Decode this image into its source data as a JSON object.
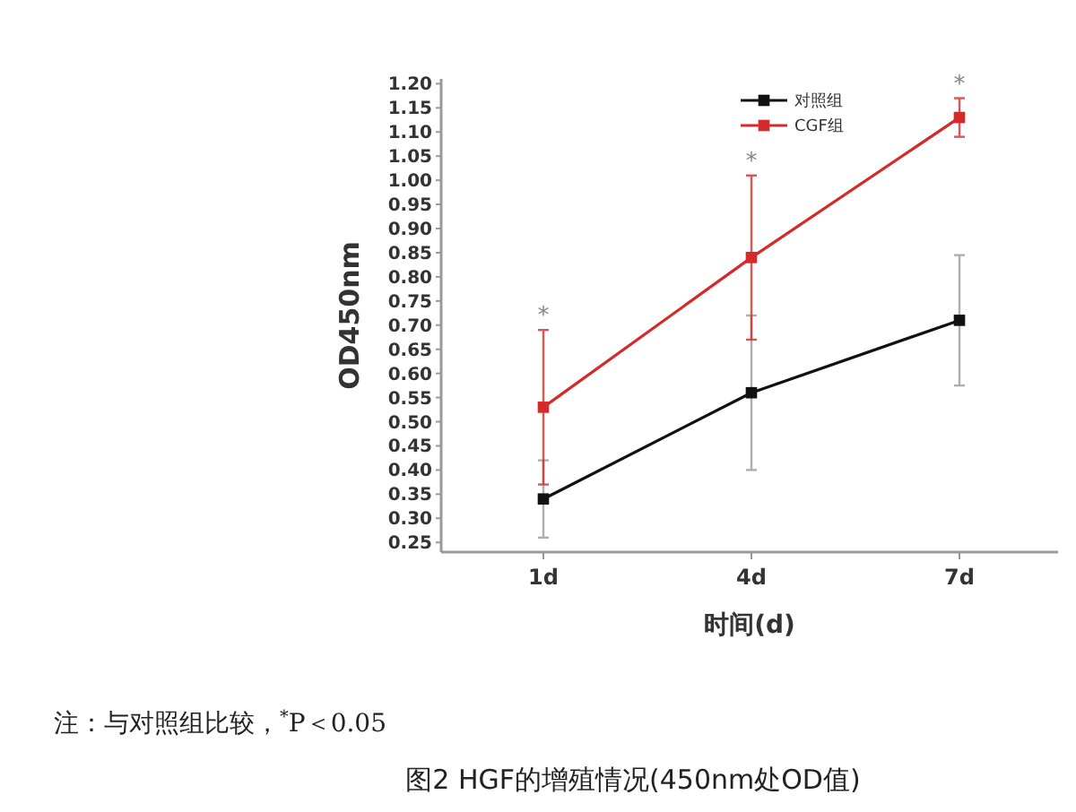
{
  "chart_data": {
    "type": "line",
    "xlabel": "时间(d)",
    "ylabel": "OD450nm",
    "title": "图2 HGF的增殖情况(450nm处OD值)",
    "categories": [
      "1d",
      "4d",
      "7d"
    ],
    "series": [
      {
        "name": "对照组",
        "color": "#111111",
        "values": [
          0.34,
          0.56,
          0.71
        ],
        "errors": [
          0.08,
          0.16,
          0.135
        ]
      },
      {
        "name": "CGF组",
        "color": "#d42a2a",
        "values": [
          0.53,
          0.84,
          1.13
        ],
        "errors": [
          0.16,
          0.17,
          0.04
        ]
      }
    ],
    "ylim": [
      0.23,
      1.21
    ],
    "yticks": [
      {
        "value": 0.25,
        "label": "0.25"
      },
      {
        "value": 0.3,
        "label": "0.30"
      },
      {
        "value": 0.35,
        "label": "0.35"
      },
      {
        "value": 0.4,
        "label": "0.40"
      },
      {
        "value": 0.45,
        "label": "0.45"
      },
      {
        "value": 0.5,
        "label": "0.50"
      },
      {
        "value": 0.55,
        "label": "0.55"
      },
      {
        "value": 0.6,
        "label": "0.60"
      },
      {
        "value": 0.65,
        "label": "0.65"
      },
      {
        "value": 0.7,
        "label": "0.70"
      },
      {
        "value": 0.75,
        "label": "0.75"
      },
      {
        "value": 0.8,
        "label": "0.80"
      },
      {
        "value": 0.85,
        "label": "0.85"
      },
      {
        "value": 0.9,
        "label": "0.90"
      },
      {
        "value": 0.95,
        "label": "0.95"
      },
      {
        "value": 1.0,
        "label": "1.00"
      },
      {
        "value": 1.05,
        "label": "1.05"
      },
      {
        "value": 1.1,
        "label": "1.10"
      },
      {
        "value": 1.15,
        "label": "1.15"
      },
      {
        "value": 1.2,
        "label": "1.20"
      }
    ],
    "annotations": [
      "*",
      "*",
      "*",
      "注：与对照组比较，$^{*}$P＜0.05"
    ],
    "legend": "top right",
    "marker": "square",
    "line_style": "solid",
    "grid": false
  }
}
